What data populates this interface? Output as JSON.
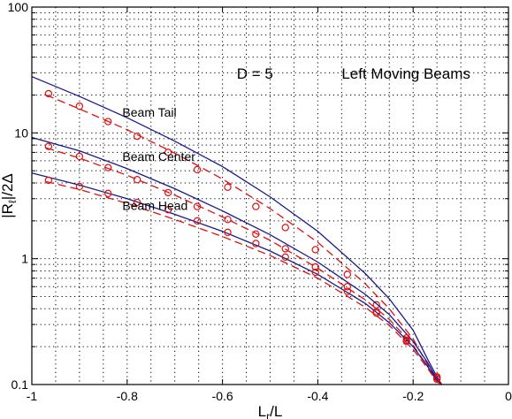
{
  "chart_data": {
    "type": "line",
    "title": "",
    "xlabel": "L_r/L",
    "ylabel": "|R_ℓ|/2Δ",
    "xlim": [
      -1,
      0
    ],
    "ylim": [
      0.1,
      100
    ],
    "yscale": "log",
    "grid": true,
    "grid_style": "dotted",
    "x_ticks": [
      -1,
      -0.8,
      -0.6,
      -0.4,
      -0.2,
      0
    ],
    "x_tick_labels": [
      "-1",
      "-0.8",
      "-0.6",
      "-0.4",
      "-0.2",
      "0"
    ],
    "y_ticks": [
      0.1,
      1,
      10,
      100
    ],
    "y_tick_labels": [
      "0.1",
      "1",
      "10",
      "100"
    ],
    "annotations": [
      {
        "text": "D = 5",
        "x": -0.57,
        "y": 27
      },
      {
        "text": "Left Moving Beams",
        "x": -0.35,
        "y": 27
      },
      {
        "text": "Beam Tail",
        "x": -0.81,
        "y": 13.5
      },
      {
        "text": "Beam Center",
        "x": -0.81,
        "y": 6.0
      },
      {
        "text": "Beam Head",
        "x": -0.81,
        "y": 2.45
      }
    ],
    "series": [
      {
        "group": "tail",
        "style": "solid",
        "color": "#1a1a8c",
        "x": [
          -1.0,
          -0.9,
          -0.8,
          -0.7,
          -0.6,
          -0.5,
          -0.4,
          -0.3,
          -0.25,
          -0.2,
          -0.17,
          -0.15,
          -0.14
        ],
        "y": [
          28,
          19.5,
          13.2,
          8.6,
          5.4,
          3.1,
          1.65,
          0.76,
          0.48,
          0.27,
          0.16,
          0.115,
          0.1
        ]
      },
      {
        "group": "tail",
        "style": "dashed",
        "color": "#e01010",
        "x": [
          -0.97,
          -0.9,
          -0.8,
          -0.7,
          -0.6,
          -0.5,
          -0.4,
          -0.3,
          -0.25,
          -0.2,
          -0.17,
          -0.15,
          -0.14
        ],
        "y": [
          20,
          15.5,
          10.6,
          6.9,
          4.3,
          2.5,
          1.35,
          0.63,
          0.4,
          0.23,
          0.145,
          0.11,
          0.1
        ]
      },
      {
        "group": "tail",
        "style": "markers",
        "color": "#e01010",
        "x": [
          -0.965,
          -0.9,
          -0.84,
          -0.779,
          -0.714,
          -0.653,
          -0.589,
          -0.53,
          -0.468,
          -0.405,
          -0.338,
          -0.277,
          -0.214,
          -0.15
        ],
        "y": [
          20.5,
          16.3,
          12.3,
          9.4,
          7.0,
          5.1,
          3.7,
          2.6,
          1.77,
          1.18,
          0.75,
          0.43,
          0.225,
          0.115
        ]
      },
      {
        "group": "center",
        "style": "solid",
        "color": "#1a1a8c",
        "x": [
          -1.0,
          -0.9,
          -0.8,
          -0.7,
          -0.6,
          -0.5,
          -0.4,
          -0.3,
          -0.25,
          -0.2,
          -0.17,
          -0.15,
          -0.14
        ],
        "y": [
          9.2,
          7.2,
          5.2,
          3.6,
          2.4,
          1.55,
          0.94,
          0.52,
          0.36,
          0.22,
          0.15,
          0.11,
          0.1
        ]
      },
      {
        "group": "center",
        "style": "dashed",
        "color": "#e01010",
        "x": [
          -0.97,
          -0.9,
          -0.8,
          -0.7,
          -0.6,
          -0.5,
          -0.4,
          -0.3,
          -0.25,
          -0.2,
          -0.17,
          -0.15,
          -0.14
        ],
        "y": [
          7.6,
          6.3,
          4.6,
          3.2,
          2.15,
          1.4,
          0.84,
          0.47,
          0.33,
          0.205,
          0.14,
          0.108,
          0.1
        ]
      },
      {
        "group": "center",
        "style": "markers",
        "color": "#e01010",
        "x": [
          -0.965,
          -0.9,
          -0.84,
          -0.779,
          -0.714,
          -0.653,
          -0.589,
          -0.53,
          -0.468,
          -0.405,
          -0.338,
          -0.277,
          -0.214,
          -0.15
        ],
        "y": [
          7.8,
          6.5,
          5.3,
          4.25,
          3.35,
          2.6,
          2.05,
          1.57,
          1.2,
          0.86,
          0.6,
          0.38,
          0.235,
          0.113
        ]
      },
      {
        "group": "head",
        "style": "solid",
        "color": "#1a1a8c",
        "x": [
          -1.0,
          -0.9,
          -0.8,
          -0.7,
          -0.6,
          -0.5,
          -0.4,
          -0.3,
          -0.25,
          -0.2,
          -0.17,
          -0.15,
          -0.14
        ],
        "y": [
          4.8,
          3.85,
          3.0,
          2.25,
          1.65,
          1.15,
          0.75,
          0.44,
          0.31,
          0.2,
          0.14,
          0.107,
          0.1
        ]
      },
      {
        "group": "head",
        "style": "dashed",
        "color": "#e01010",
        "x": [
          -0.97,
          -0.9,
          -0.8,
          -0.7,
          -0.6,
          -0.5,
          -0.4,
          -0.3,
          -0.25,
          -0.2,
          -0.17,
          -0.15,
          -0.14
        ],
        "y": [
          4.1,
          3.55,
          2.75,
          2.05,
          1.5,
          1.06,
          0.7,
          0.41,
          0.295,
          0.19,
          0.135,
          0.105,
          0.1
        ]
      },
      {
        "group": "head",
        "style": "markers",
        "color": "#e01010",
        "x": [
          -0.965,
          -0.9,
          -0.84,
          -0.779,
          -0.714,
          -0.653,
          -0.589,
          -0.53,
          -0.468,
          -0.405,
          -0.338,
          -0.277,
          -0.214,
          -0.15
        ],
        "y": [
          4.2,
          3.75,
          3.3,
          2.8,
          2.45,
          2.0,
          1.62,
          1.32,
          1.03,
          0.78,
          0.55,
          0.37,
          0.22,
          0.11
        ]
      }
    ]
  }
}
